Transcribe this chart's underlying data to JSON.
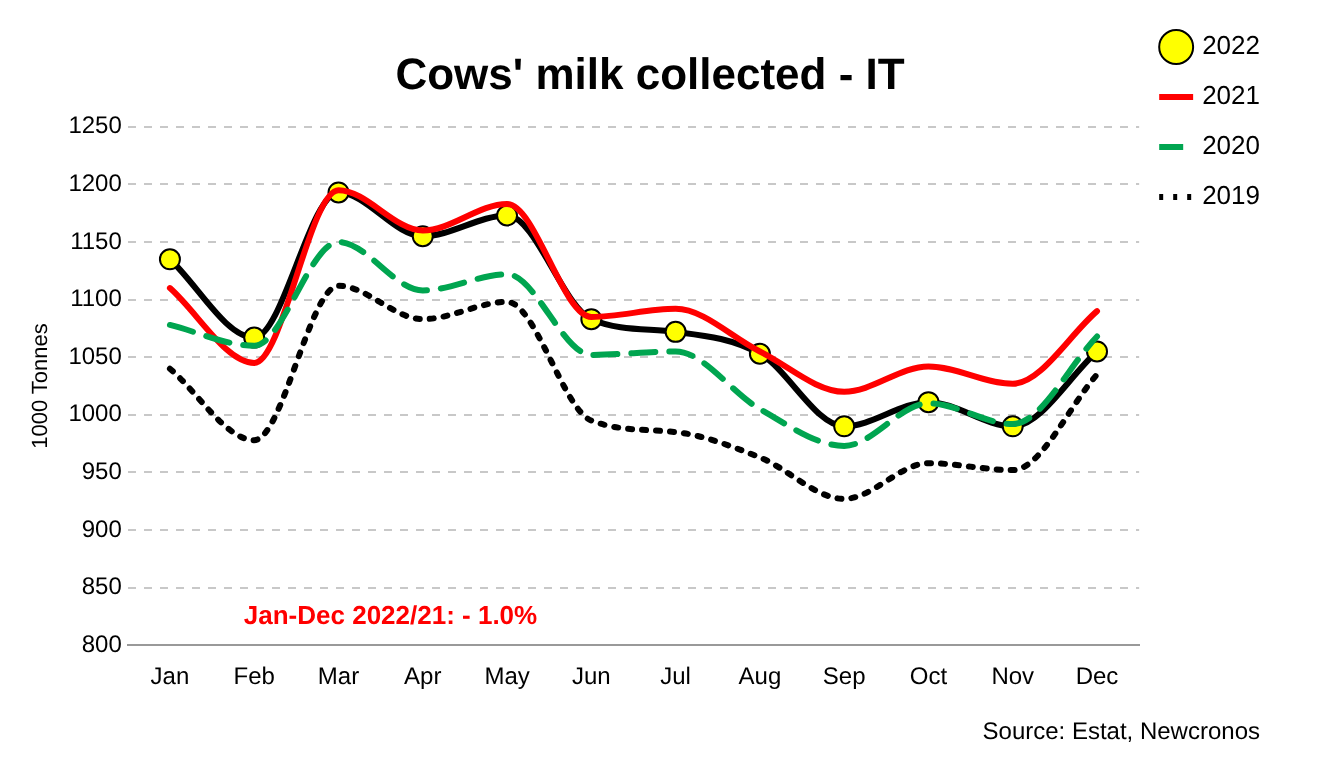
{
  "chart_data": {
    "type": "line",
    "title": "Cows' milk collected - IT",
    "ylabel": "1000 Tonnes",
    "categories": [
      "Jan",
      "Feb",
      "Mar",
      "Apr",
      "May",
      "Jun",
      "Jul",
      "Aug",
      "Sep",
      "Oct",
      "Nov",
      "Dec"
    ],
    "series": [
      {
        "name": "2022",
        "color": "#000000",
        "marker": "circle",
        "line_style": "solid",
        "values": [
          1135,
          1067,
          1193,
          1155,
          1173,
          1083,
          1072,
          1053,
          990,
          1011,
          990,
          1055
        ]
      },
      {
        "name": "2021",
        "color": "#ff0000",
        "marker": "none",
        "line_style": "solid",
        "values": [
          1110,
          1045,
          1195,
          1160,
          1183,
          1085,
          1092,
          1055,
          1020,
          1042,
          1027,
          1090
        ]
      },
      {
        "name": "2020",
        "color": "#00a550",
        "marker": "none",
        "line_style": "dashed",
        "values": [
          1078,
          1060,
          1150,
          1108,
          1122,
          1052,
          1055,
          1005,
          973,
          1010,
          992,
          1068
        ]
      },
      {
        "name": "2019",
        "color": "#000000",
        "marker": "none",
        "line_style": "dotted",
        "values": [
          1040,
          978,
          1112,
          1083,
          1098,
          995,
          985,
          963,
          927,
          958,
          952,
          1035
        ]
      }
    ],
    "ylim": [
      800,
      1250
    ],
    "yticks": [
      800,
      850,
      900,
      950,
      1000,
      1050,
      1100,
      1150,
      1200,
      1250
    ],
    "grid": "y",
    "legend": "top right",
    "annotations": [
      "Jan-Dec 2022/21: - 1.0%",
      "Source: Estat, Newcronos"
    ]
  }
}
